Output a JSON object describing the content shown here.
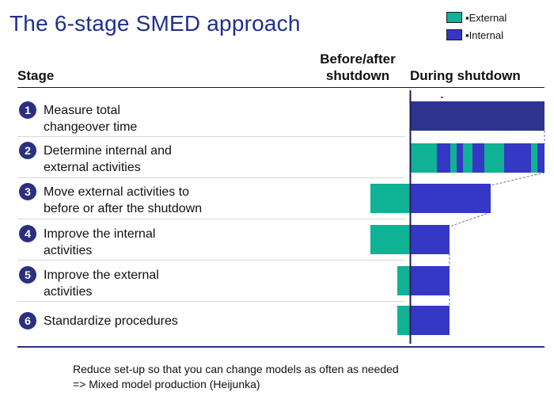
{
  "title": "The 6-stage SMED approach",
  "legend": [
    {
      "label": "▪External",
      "color": "#0fb295"
    },
    {
      "label": "▪Internal",
      "color": "#3438c4"
    }
  ],
  "headers": {
    "stage": "Stage",
    "before_after_line1": "Before/after",
    "before_after_line2": "shutdown",
    "during": "During shutdown"
  },
  "colors": {
    "external": "#0fb295",
    "internal": "#3438c4",
    "stage1_internal": "#2e3390",
    "badge": "#2b2f7f",
    "title": "#1f2f8f"
  },
  "stages": [
    {
      "number": "1",
      "line1": "Measure total",
      "line2": "changeover time"
    },
    {
      "number": "2",
      "line1": "Determine internal and",
      "line2": "external activities"
    },
    {
      "number": "3",
      "line1": "Move external activities to",
      "line2": "before or after the shutdown"
    },
    {
      "number": "4",
      "line1": "Improve the internal",
      "line2": "activities"
    },
    {
      "number": "5",
      "line1": "Improve the external",
      "line2": "activities"
    },
    {
      "number": "6",
      "line1": "Standardize procedures",
      "line2": ""
    }
  ],
  "footer": {
    "line1": "Reduce set-up so that you can change models as often as needed",
    "line2": "=> Mixed model production (Heijunka)"
  }
}
